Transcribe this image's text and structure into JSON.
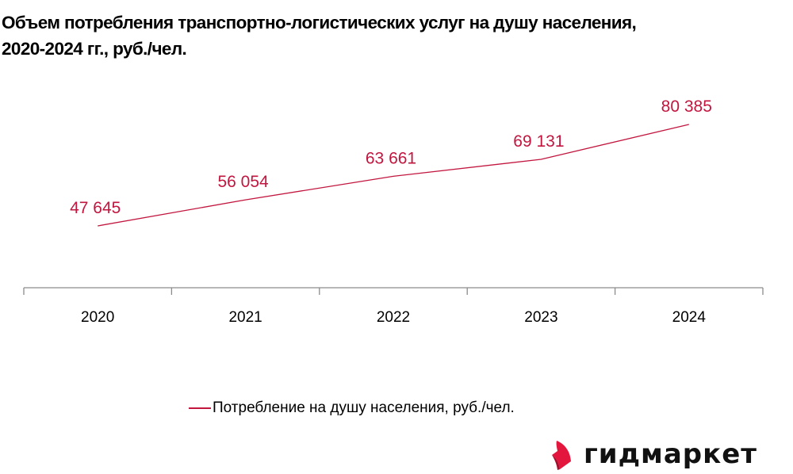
{
  "title": {
    "line1": "Объем потребления транспортно-логистических услуг на душу населения,",
    "line2": "2020-2024 гг., руб./чел."
  },
  "legend": {
    "label": "Потребление на душу населения, руб./чел."
  },
  "logo": {
    "text": "гидмаркет",
    "icon": "gidmarket-logo-icon"
  },
  "colors": {
    "series": "#c2163f",
    "axis": "#8c8c8c",
    "logo_accent": "#e3173e"
  },
  "chart_data": {
    "type": "line",
    "title": "Объем потребления транспортно-логистических услуг на душу населения, 2020-2024 гг., руб./чел.",
    "xlabel": "",
    "ylabel": "",
    "categories": [
      "2020",
      "2021",
      "2022",
      "2023",
      "2024"
    ],
    "series": [
      {
        "name": "Потребление на душу населения, руб./чел.",
        "values": [
          47645,
          56054,
          63661,
          69131,
          80385
        ],
        "labels": [
          "47 645",
          "56 054",
          "63 661",
          "69 131",
          "80 385"
        ]
      }
    ],
    "grid": false,
    "y_axis_visible": false,
    "legend_position": "bottom"
  }
}
